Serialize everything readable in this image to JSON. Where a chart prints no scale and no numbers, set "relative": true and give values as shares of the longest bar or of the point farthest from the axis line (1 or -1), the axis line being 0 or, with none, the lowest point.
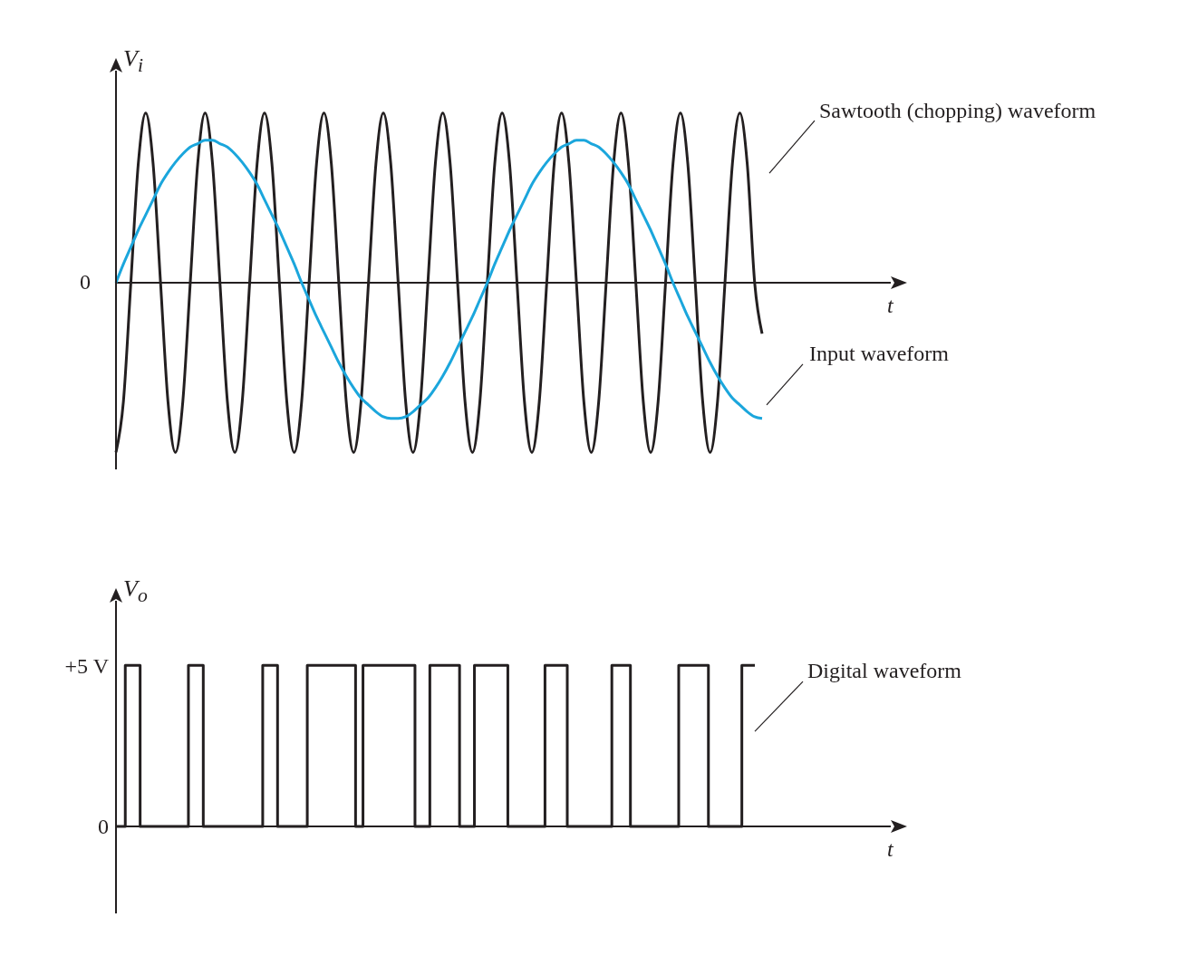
{
  "chart_data": [
    {
      "type": "line",
      "relative": true,
      "ylabel": "V$_{i}$",
      "xlabel": "t",
      "marker": "none",
      "tick_labels": false,
      "annotations": [
        "0"
      ],
      "categories": [
        null,
        null,
        null,
        null,
        null,
        null,
        null,
        null,
        null,
        null,
        null,
        null,
        null,
        null,
        null,
        null,
        null,
        null,
        null,
        null,
        null,
        null,
        null,
        null,
        null,
        null,
        null,
        null,
        null,
        null,
        null,
        null,
        null,
        null,
        null,
        null,
        null,
        null,
        null,
        null,
        null,
        null,
        null,
        null,
        null,
        null,
        null,
        null,
        null,
        null,
        null,
        null,
        null,
        null,
        null,
        null,
        null,
        null,
        null,
        null,
        null,
        null,
        null,
        null,
        null,
        null,
        null,
        null,
        null,
        null,
        null,
        null,
        null,
        null,
        null,
        null,
        null,
        null,
        null,
        null,
        null,
        null,
        null,
        null,
        null,
        null,
        null,
        null
      ],
      "series": [
        {
          "name": "Sawtooth (chopping) waveform",
          "color": "#231f20",
          "values": [
            -1,
            -0.7,
            0,
            0.7,
            1,
            0.7,
            0,
            -0.7,
            -1,
            -0.7,
            0,
            0.7,
            1,
            0.7,
            0,
            -0.7,
            -1,
            -0.7,
            0,
            0.7,
            1,
            0.7,
            0,
            -0.7,
            -1,
            -0.7,
            0,
            0.7,
            1,
            0.7,
            0,
            -0.7,
            -1,
            -0.7,
            0,
            0.7,
            1,
            0.7,
            0,
            -0.7,
            -1,
            -0.7,
            0,
            0.7,
            1,
            0.7,
            0,
            -0.7,
            -1,
            -0.7,
            0,
            0.7,
            1,
            0.7,
            0,
            -0.7,
            -1,
            -0.7,
            0,
            0.7,
            1,
            0.7,
            0,
            -0.7,
            -1,
            -0.7,
            0,
            0.7,
            1,
            0.7,
            0,
            -0.7,
            -1,
            -0.7,
            0,
            0.7,
            1,
            0.7,
            0,
            -0.7,
            -1,
            -0.7,
            0,
            0.7,
            1,
            0.7,
            0,
            -0.3
          ]
        },
        {
          "name": "Input waveform",
          "color": "#1ba6dc",
          "values": [
            0,
            0.11,
            0.21,
            0.31,
            0.4,
            0.49,
            0.58,
            0.65,
            0.71,
            0.76,
            0.8,
            0.82,
            0.84,
            0.84,
            0.82,
            0.8,
            0.76,
            0.71,
            0.65,
            0.58,
            0.49,
            0.4,
            0.31,
            0.21,
            0.11,
            0,
            -0.1,
            -0.2,
            -0.29,
            -0.38,
            -0.47,
            -0.55,
            -0.62,
            -0.68,
            -0.72,
            -0.76,
            -0.79,
            -0.8,
            -0.8,
            -0.79,
            -0.76,
            -0.72,
            -0.68,
            -0.62,
            -0.55,
            -0.47,
            -0.38,
            -0.29,
            -0.2,
            -0.1,
            0,
            0.11,
            0.21,
            0.31,
            0.4,
            0.49,
            0.58,
            0.65,
            0.71,
            0.76,
            0.8,
            0.82,
            0.84,
            0.84,
            0.82,
            0.8,
            0.76,
            0.71,
            0.65,
            0.58,
            0.49,
            0.4,
            0.31,
            0.21,
            0.11,
            0,
            -0.1,
            -0.2,
            -0.29,
            -0.38,
            -0.47,
            -0.55,
            -0.62,
            -0.68,
            -0.72,
            -0.76,
            -0.79,
            -0.8
          ]
        }
      ]
    },
    {
      "type": "step",
      "ylabel": "V$_{o}$",
      "xlabel": "t",
      "marker": "none",
      "tick_labels": "y",
      "ylim": [
        -2.7,
        7
      ],
      "yticks": [
        0,
        {
          "value": 5,
          "label": "+5 V"
        }
      ],
      "categories": [
        null,
        null,
        null,
        null,
        null,
        null,
        null,
        null,
        null,
        null,
        null,
        null,
        null,
        null,
        null,
        null,
        null,
        null,
        null,
        null,
        null,
        null,
        null,
        null,
        null,
        null,
        null,
        null,
        null,
        null,
        null,
        null,
        null,
        null,
        null,
        null,
        null,
        null,
        null,
        null,
        null,
        null,
        null,
        null,
        null,
        null,
        null,
        null,
        null,
        null,
        null,
        null,
        null,
        null,
        null,
        null,
        null,
        null,
        null,
        null,
        null,
        null,
        null,
        null,
        null,
        null,
        null,
        null,
        null,
        null,
        null,
        null,
        null,
        null,
        null,
        null,
        null,
        null,
        null,
        null,
        null,
        null,
        null,
        null,
        null,
        null,
        null,
        null,
        null,
        null,
        null,
        null,
        null,
        null,
        null,
        null,
        null,
        null,
        null,
        null,
        null,
        null,
        null,
        null,
        null,
        null,
        null,
        null,
        null,
        null,
        null,
        null,
        null,
        null,
        null,
        null,
        null,
        null,
        null,
        null,
        null,
        null,
        null,
        null,
        null,
        null,
        null,
        null,
        null,
        null,
        null,
        null,
        null,
        null,
        null,
        null,
        null,
        null,
        null,
        null,
        null,
        null,
        null,
        null,
        null,
        null,
        null,
        null,
        null,
        null,
        null,
        null,
        null,
        null,
        null,
        null,
        null,
        null,
        null,
        null,
        null,
        null,
        null,
        null,
        null,
        null,
        null,
        null,
        null,
        null,
        null,
        null,
        null
      ],
      "series": [
        {
          "name": "Digital waveform",
          "color": "#231f20",
          "values": [
            0,
            0,
            0,
            5,
            5,
            5,
            5,
            0,
            0,
            0,
            0,
            0,
            0,
            0,
            0,
            0,
            0,
            0,
            0,
            0,
            5,
            5,
            5,
            5,
            0,
            0,
            0,
            0,
            0,
            0,
            0,
            0,
            0,
            0,
            0,
            0,
            0,
            0,
            0,
            0,
            5,
            5,
            5,
            5,
            0,
            0,
            0,
            0,
            0,
            0,
            0,
            0,
            5,
            5,
            5,
            5,
            5,
            5,
            5,
            5,
            5,
            5,
            5,
            5,
            5,
            0,
            0,
            5,
            5,
            5,
            5,
            5,
            5,
            5,
            5,
            5,
            5,
            5,
            5,
            5,
            5,
            0,
            0,
            0,
            0,
            5,
            5,
            5,
            5,
            5,
            5,
            5,
            5,
            0,
            0,
            0,
            0,
            5,
            5,
            5,
            5,
            5,
            5,
            5,
            5,
            5,
            0,
            0,
            0,
            0,
            0,
            0,
            0,
            0,
            0,
            0,
            5,
            5,
            5,
            5,
            5,
            5,
            0,
            0,
            0,
            0,
            0,
            0,
            0,
            0,
            0,
            0,
            0,
            0,
            5,
            5,
            5,
            5,
            5,
            0,
            0,
            0,
            0,
            0,
            0,
            0,
            0,
            0,
            0,
            0,
            0,
            0,
            5,
            5,
            5,
            5,
            5,
            5,
            5,
            5,
            0,
            0,
            0,
            0,
            0,
            0,
            0,
            0,
            0,
            5,
            5,
            5,
            5
          ]
        }
      ]
    }
  ]
}
